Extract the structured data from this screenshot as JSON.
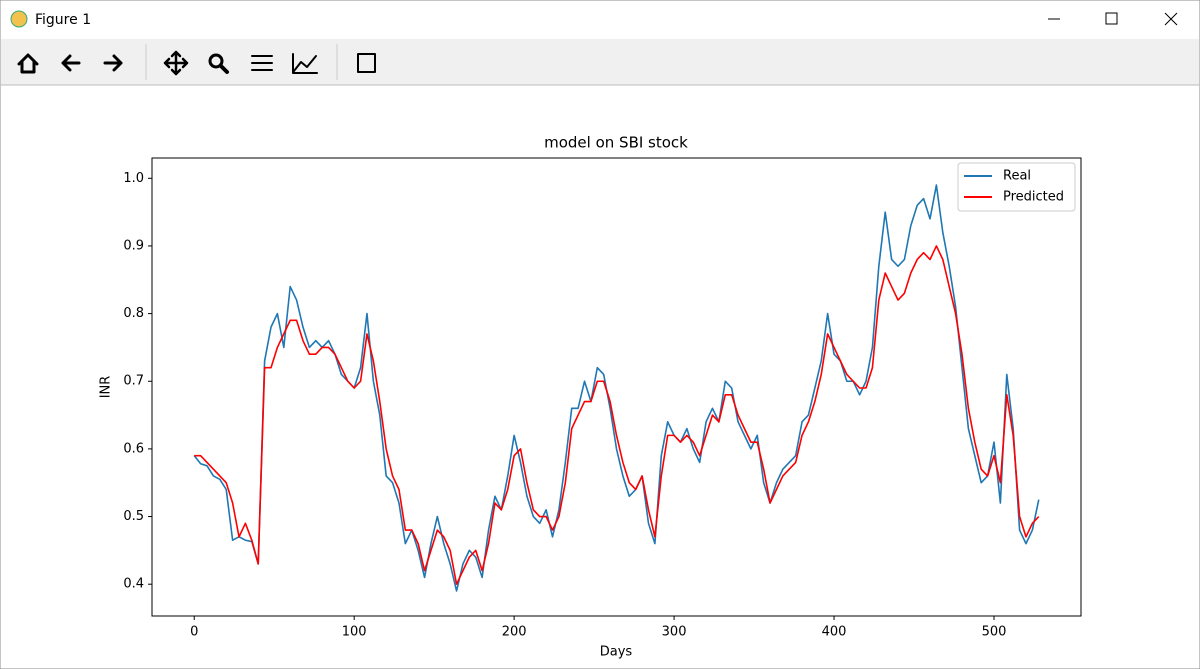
{
  "window": {
    "title": "Figure 1"
  },
  "chart_data": {
    "type": "line",
    "title": "model on SBI stock",
    "x_label": "Days",
    "y_label": "INR",
    "x": [
      0,
      4,
      8,
      12,
      16,
      20,
      24,
      28,
      32,
      36,
      40,
      44,
      48,
      52,
      56,
      60,
      64,
      68,
      72,
      76,
      80,
      84,
      88,
      92,
      96,
      100,
      104,
      108,
      112,
      116,
      120,
      124,
      128,
      132,
      136,
      140,
      144,
      148,
      152,
      156,
      160,
      164,
      168,
      172,
      176,
      180,
      184,
      188,
      192,
      196,
      200,
      204,
      208,
      212,
      216,
      220,
      224,
      228,
      232,
      236,
      240,
      244,
      248,
      252,
      256,
      260,
      264,
      268,
      272,
      276,
      280,
      284,
      288,
      292,
      296,
      300,
      304,
      308,
      312,
      316,
      320,
      324,
      328,
      332,
      336,
      340,
      344,
      348,
      352,
      356,
      360,
      364,
      368,
      372,
      376,
      380,
      384,
      388,
      392,
      396,
      400,
      404,
      408,
      412,
      416,
      420,
      424,
      428,
      432,
      436,
      440,
      444,
      448,
      452,
      456,
      460,
      464,
      468,
      472,
      476,
      480,
      484,
      488,
      492,
      496,
      500,
      504,
      508,
      512,
      516,
      520,
      524,
      528
    ],
    "series": [
      {
        "name": "Real",
        "color": "#1f77b4",
        "values": [
          0.59,
          0.578,
          0.575,
          0.56,
          0.555,
          0.54,
          0.465,
          0.47,
          0.465,
          0.463,
          0.43,
          0.73,
          0.78,
          0.8,
          0.75,
          0.84,
          0.82,
          0.78,
          0.75,
          0.76,
          0.75,
          0.76,
          0.74,
          0.71,
          0.7,
          0.69,
          0.72,
          0.8,
          0.7,
          0.65,
          0.56,
          0.55,
          0.52,
          0.46,
          0.48,
          0.45,
          0.41,
          0.46,
          0.5,
          0.46,
          0.43,
          0.39,
          0.43,
          0.45,
          0.44,
          0.41,
          0.48,
          0.53,
          0.51,
          0.56,
          0.62,
          0.58,
          0.53,
          0.5,
          0.49,
          0.51,
          0.47,
          0.51,
          0.58,
          0.66,
          0.66,
          0.7,
          0.67,
          0.72,
          0.71,
          0.66,
          0.6,
          0.56,
          0.53,
          0.54,
          0.56,
          0.49,
          0.46,
          0.59,
          0.64,
          0.62,
          0.61,
          0.63,
          0.6,
          0.58,
          0.64,
          0.66,
          0.64,
          0.7,
          0.69,
          0.64,
          0.62,
          0.6,
          0.62,
          0.55,
          0.52,
          0.55,
          0.57,
          0.58,
          0.59,
          0.64,
          0.65,
          0.69,
          0.73,
          0.8,
          0.74,
          0.73,
          0.7,
          0.7,
          0.68,
          0.7,
          0.75,
          0.87,
          0.95,
          0.88,
          0.87,
          0.88,
          0.93,
          0.96,
          0.97,
          0.94,
          0.99,
          0.92,
          0.87,
          0.81,
          0.72,
          0.63,
          0.59,
          0.55,
          0.56,
          0.61,
          0.52,
          0.71,
          0.63,
          0.48,
          0.46,
          0.48,
          0.525
        ]
      },
      {
        "name": "Predicted",
        "color": "#ff0000",
        "values": [
          0.59,
          0.59,
          0.58,
          0.57,
          0.56,
          0.55,
          0.52,
          0.47,
          0.49,
          0.465,
          0.43,
          0.72,
          0.72,
          0.75,
          0.77,
          0.79,
          0.79,
          0.76,
          0.74,
          0.74,
          0.75,
          0.75,
          0.74,
          0.72,
          0.7,
          0.69,
          0.7,
          0.77,
          0.73,
          0.67,
          0.6,
          0.56,
          0.54,
          0.48,
          0.48,
          0.46,
          0.42,
          0.45,
          0.48,
          0.47,
          0.45,
          0.4,
          0.42,
          0.44,
          0.45,
          0.42,
          0.46,
          0.52,
          0.51,
          0.54,
          0.59,
          0.6,
          0.55,
          0.51,
          0.5,
          0.5,
          0.48,
          0.5,
          0.55,
          0.63,
          0.65,
          0.67,
          0.67,
          0.7,
          0.7,
          0.67,
          0.62,
          0.58,
          0.55,
          0.54,
          0.56,
          0.51,
          0.47,
          0.56,
          0.62,
          0.62,
          0.61,
          0.62,
          0.61,
          0.59,
          0.62,
          0.65,
          0.64,
          0.68,
          0.68,
          0.65,
          0.63,
          0.61,
          0.61,
          0.57,
          0.52,
          0.54,
          0.56,
          0.57,
          0.58,
          0.62,
          0.64,
          0.67,
          0.71,
          0.77,
          0.75,
          0.73,
          0.71,
          0.7,
          0.69,
          0.69,
          0.72,
          0.82,
          0.86,
          0.84,
          0.82,
          0.83,
          0.86,
          0.88,
          0.89,
          0.88,
          0.9,
          0.88,
          0.84,
          0.8,
          0.74,
          0.66,
          0.61,
          0.57,
          0.56,
          0.59,
          0.55,
          0.68,
          0.62,
          0.5,
          0.47,
          0.49,
          0.5
        ]
      }
    ],
    "xlim": [
      -26.4,
      554.4
    ],
    "ylim": [
      0.353,
      1.03
    ],
    "xticks": [
      0,
      100,
      200,
      300,
      400,
      500
    ],
    "yticks": [
      0.4,
      0.5,
      0.6,
      0.7,
      0.8,
      0.9,
      {
        "value": 1,
        "label": "1.0"
      }
    ],
    "legend": "upper right",
    "grid": false
  }
}
